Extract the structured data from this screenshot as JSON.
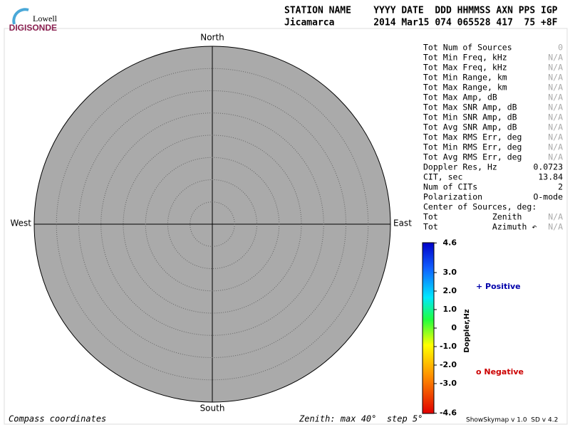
{
  "header": {
    "logo_top": "Lowell",
    "logo_bottom": "DIGISONDE",
    "line1": "STATION NAME    YYYY DATE  DDD HHMMSS AXN PPS IGP",
    "line2": "Jicamarca       2014 Mar15 074 065528 417  75 +8F"
  },
  "compass": {
    "north": "North",
    "south": "South",
    "east": "East",
    "west": "West"
  },
  "stats": [
    [
      "Tot Num of Sources",
      "0"
    ],
    [
      "Tot Min Freq, kHz",
      "N/A"
    ],
    [
      "Tot Max Freq, kHz",
      "N/A"
    ],
    [
      "Tot Min Range, km",
      "N/A"
    ],
    [
      "Tot Max Range, km",
      "N/A"
    ],
    [
      "Tot Max Amp, dB",
      "N/A"
    ],
    [
      "Tot Max SNR Amp, dB",
      "N/A"
    ],
    [
      "Tot Min SNR Amp, dB",
      "N/A"
    ],
    [
      "Tot Avg SNR Amp, dB",
      "N/A"
    ],
    [
      "Tot Max RMS Err, deg",
      "N/A"
    ],
    [
      "Tot Min RMS Err, deg",
      "N/A"
    ],
    [
      "Tot Avg RMS Err, deg",
      "N/A"
    ],
    [
      "Doppler Res, Hz",
      "0.0723"
    ],
    [
      "CIT, sec",
      "13.84"
    ],
    [
      "Num of CITs",
      "2"
    ],
    [
      "Polarization",
      "O-mode"
    ],
    [
      "Center of Sources, deg:"
    ],
    [
      "Tot           Zenith",
      "N/A"
    ],
    [
      "Tot           Azimuth ↶",
      "N/A"
    ]
  ],
  "colorbar": {
    "label": "Doppler,Hz",
    "ticks": [
      "4.6",
      "3.0",
      "2.0",
      "1.0",
      "0",
      "-1.0",
      "-2.0",
      "-3.0",
      "-4.6"
    ]
  },
  "legend": {
    "positive": "+ Positive",
    "negative": "o Negative"
  },
  "footer": {
    "left": "Compass coordinates",
    "middle": "Zenith: max 40°  step 5°",
    "right": "ShowSkymap v 1.0  SD v 4.2"
  }
}
